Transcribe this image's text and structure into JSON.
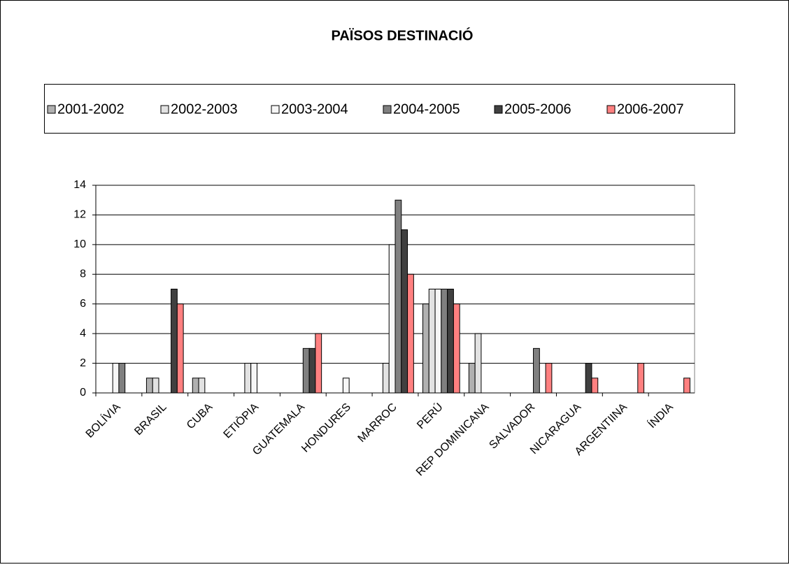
{
  "chart_data": {
    "type": "bar",
    "title": "PAÏSOS DESTINACIÓ",
    "categories": [
      "BOLÍVIA",
      "BRASIL",
      "CUBA",
      "ETIÒPIA",
      "GUATEMALA",
      "HONDURES",
      "MARROC",
      "PERÚ",
      "REP DOMINICANA",
      "SALVADOR",
      "NICARAGUA",
      "ARGENTIINA",
      "ÍNDIA"
    ],
    "series": [
      {
        "name": "2001-2002",
        "color": "#b0b0b0",
        "values": [
          0,
          1,
          1,
          0,
          0,
          0,
          0,
          6,
          2,
          0,
          0,
          0,
          0
        ]
      },
      {
        "name": "2002-2003",
        "color": "#e2e2e2",
        "values": [
          0,
          1,
          1,
          2,
          0,
          0,
          2,
          7,
          4,
          0,
          0,
          0,
          0
        ]
      },
      {
        "name": "2003-2004",
        "color": "#f6f6f6",
        "values": [
          2,
          0,
          0,
          2,
          0,
          1,
          10,
          7,
          0,
          0,
          0,
          0,
          0
        ]
      },
      {
        "name": "2004-2005",
        "color": "#808080",
        "values": [
          2,
          0,
          0,
          0,
          3,
          0,
          13,
          7,
          0,
          3,
          0,
          0,
          0
        ]
      },
      {
        "name": "2005-2006",
        "color": "#404040",
        "values": [
          0,
          7,
          0,
          0,
          3,
          0,
          11,
          7,
          0,
          0,
          2,
          0,
          0
        ]
      },
      {
        "name": "2006-2007",
        "color": "#ff8080",
        "values": [
          0,
          6,
          0,
          0,
          4,
          0,
          8,
          6,
          0,
          2,
          1,
          2,
          1
        ]
      }
    ],
    "ylim": [
      0,
      14
    ],
    "yticks": [
      0,
      2,
      4,
      6,
      8,
      10,
      12,
      14
    ],
    "grid": true,
    "legend": "top"
  }
}
